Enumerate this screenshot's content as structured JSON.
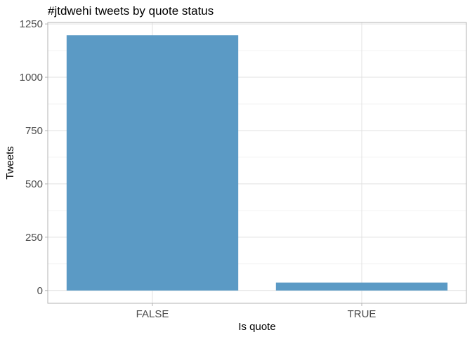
{
  "chart_data": {
    "type": "bar",
    "title": "#jtdwehi tweets by quote status",
    "xlabel": "Is quote",
    "ylabel": "Tweets",
    "categories": [
      "FALSE",
      "TRUE"
    ],
    "values": [
      1197,
      37
    ],
    "ylim": [
      -60,
      1257
    ],
    "yticks": [
      0,
      250,
      500,
      750,
      1000,
      1250
    ],
    "ytick_labels": [
      "0",
      "250",
      "500",
      "750",
      "1000",
      "1250"
    ],
    "bar_color": "#5b9ac5",
    "grid": true,
    "legend": "none"
  }
}
